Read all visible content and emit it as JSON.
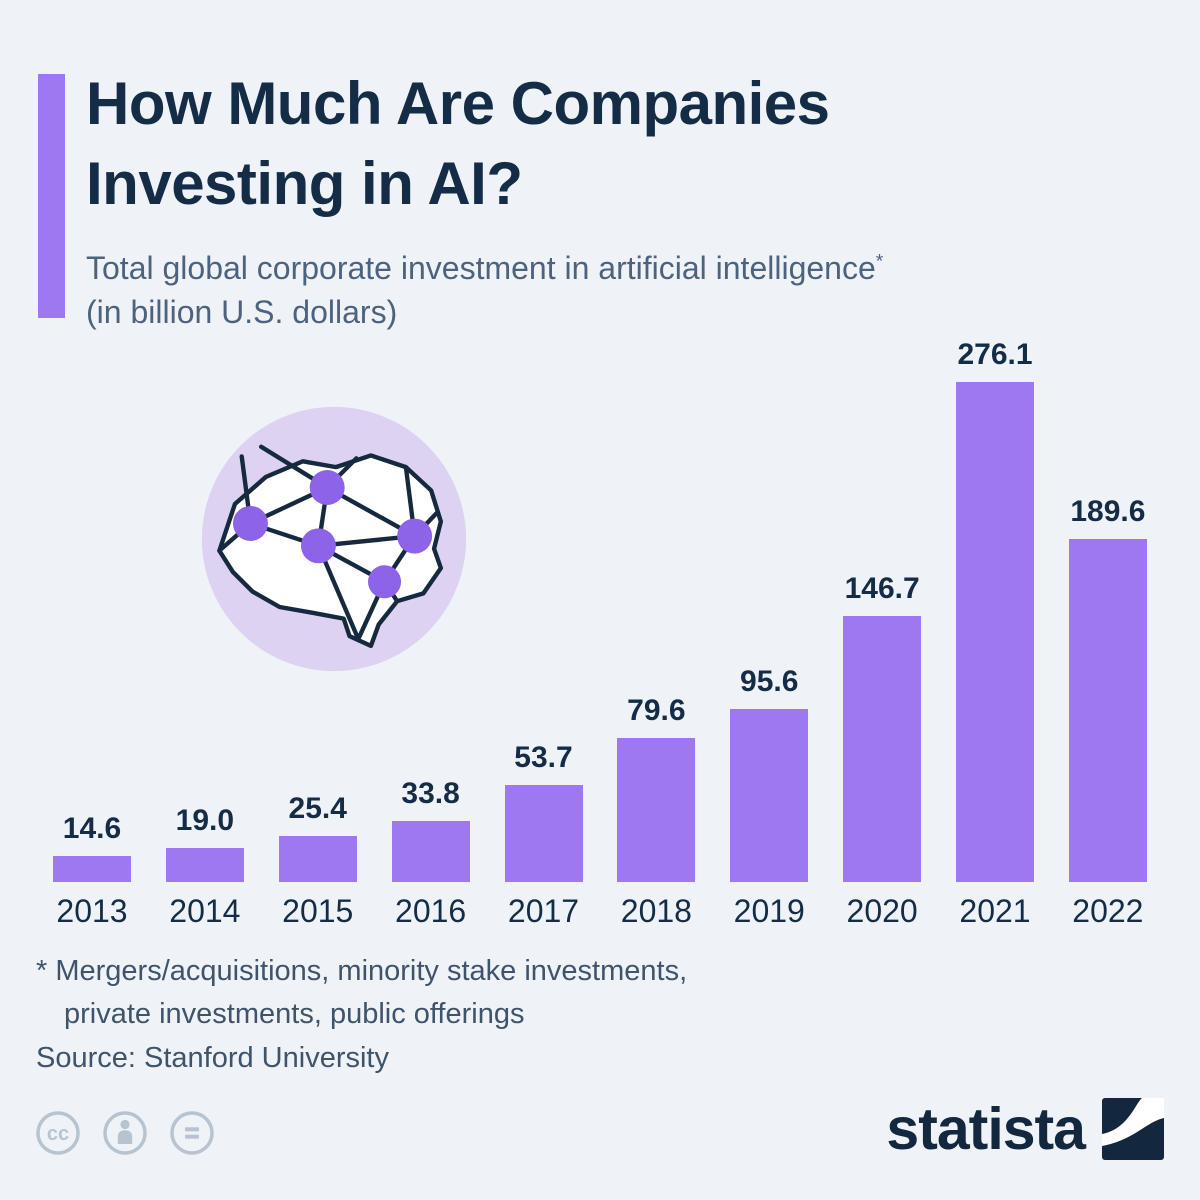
{
  "header": {
    "title_line1": "How Much Are Companies",
    "title_line2": "Investing in AI?",
    "subtitle_line1": "Total global corporate investment in artificial intelligence",
    "subtitle_sup": "*",
    "subtitle_line2": "(in billion U.S. dollars)"
  },
  "chart_data": {
    "type": "bar",
    "title": "Total global corporate investment in artificial intelligence (in billion U.S. dollars)",
    "categories": [
      "2013",
      "2014",
      "2015",
      "2016",
      "2017",
      "2018",
      "2019",
      "2020",
      "2021",
      "2022"
    ],
    "values": [
      14.6,
      19.0,
      25.4,
      33.8,
      53.7,
      79.6,
      95.6,
      146.7,
      276.1,
      189.6
    ],
    "value_labels": [
      "14.6",
      "19.0",
      "25.4",
      "33.8",
      "53.7",
      "79.6",
      "95.6",
      "146.7",
      "276.1",
      "189.6"
    ],
    "xlabel": "",
    "ylabel": "",
    "ylim": [
      0,
      280
    ],
    "grid": false,
    "legend": false,
    "value_labels_shown": true,
    "bar_color": "#9e78f0"
  },
  "footnote": {
    "marker": "*",
    "line1": "Mergers/acquisitions, minority stake investments,",
    "line2": "private investments, public offerings",
    "source": "Source: Stanford University"
  },
  "footer": {
    "license_icons": [
      "cc-license-icon",
      "cc-attribution-icon",
      "cc-nd-icon"
    ],
    "brand": "statista"
  },
  "colors": {
    "background": "#eff3f8",
    "title": "#152c47",
    "subtitle": "#4d627d",
    "bar": "#9e78f0",
    "accent_bar": "#9e78f0",
    "brain_circle": "#ddd2f2",
    "brain_node": "#8d63e8",
    "brain_outline": "#16293f",
    "footnote": "#3f536b",
    "license_icon": "#b8c3d0",
    "brand": "#13273f"
  }
}
